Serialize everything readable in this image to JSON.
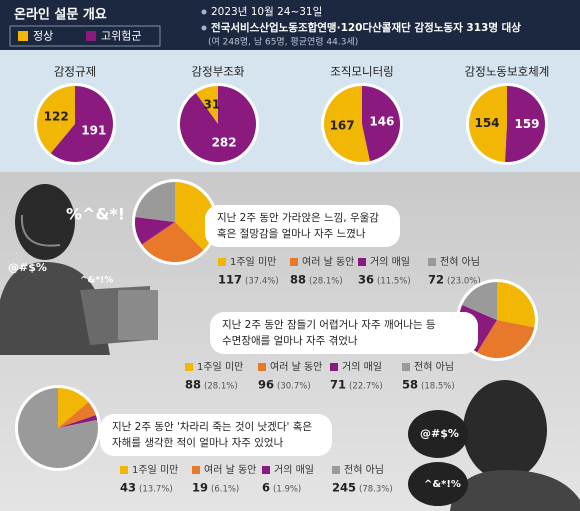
{
  "header": {
    "title": "온라인 설문 개요",
    "legend": [
      {
        "label": "정상",
        "color": "#f2b705"
      },
      {
        "label": "고위험군",
        "color": "#8b1a7e"
      }
    ],
    "info": [
      "2023년 10월 24~31일",
      "전국서비스산업노동조합연맹·120다산콜재단 감정노동자 313명 대상",
      "(여 248명, 남 65명, 평균연령 44.3세)"
    ]
  },
  "illustration": {
    "texts": [
      "%^&*!",
      "@#$%",
      "^&*!%",
      "@#$%",
      "^&*!%"
    ]
  },
  "chart_data": [
    {
      "type": "pie",
      "title": "감정규제",
      "values": [
        122,
        191
      ],
      "colors": [
        "#f2b705",
        "#8b1a7e"
      ]
    },
    {
      "type": "pie",
      "title": "감정부조화",
      "values": [
        31,
        282
      ],
      "colors": [
        "#f2b705",
        "#8b1a7e"
      ]
    },
    {
      "type": "pie",
      "title": "조직모니터링",
      "values": [
        167,
        146
      ],
      "colors": [
        "#f2b705",
        "#8b1a7e"
      ]
    },
    {
      "type": "pie",
      "title": "감정노동보호체계",
      "values": [
        154,
        159
      ],
      "colors": [
        "#f2b705",
        "#8b1a7e"
      ]
    },
    {
      "type": "pie",
      "title": [
        "지난 2주 동안 가라앉은 느낌, 우울감",
        "혹은 절망감을 얼마나 자주 느꼈나"
      ],
      "categories": [
        "1주일 미만",
        "여러 날 동안",
        "거의 매일",
        "전혀 아님"
      ],
      "values": [
        117,
        88,
        36,
        72
      ],
      "percent_labels": [
        "(37.4%)",
        "(28.1%)",
        "(11.5%)",
        "(23.0%)"
      ],
      "colors": [
        "#f2b705",
        "#e8782a",
        "#8b1a7e",
        "#9a9a9a"
      ]
    },
    {
      "type": "pie",
      "title": [
        "지난 2주 동안 잠들기 어렵거나 자주 깨어나는 등",
        "수면장애를 얼마나 자주 겪었나"
      ],
      "categories": [
        "1주일 미만",
        "여러 날 동안",
        "거의 매일",
        "전혀 아님"
      ],
      "values": [
        88,
        96,
        71,
        58
      ],
      "percent_labels": [
        "(28.1%)",
        "(30.7%)",
        "(22.7%)",
        "(18.5%)"
      ],
      "colors": [
        "#f2b705",
        "#e8782a",
        "#8b1a7e",
        "#9a9a9a"
      ]
    },
    {
      "type": "pie",
      "title": [
        "지난 2주 동안 '차라리 죽는 것이 낫겠다' 혹은",
        "자해를 생각한 적이 얼마나 자주 있었나"
      ],
      "categories": [
        "1주일 미만",
        "여러 날 동안",
        "거의 매일",
        "전혀 아님"
      ],
      "values": [
        43,
        19,
        6,
        245
      ],
      "percent_labels": [
        "(13.7%)",
        "(6.1%)",
        "(1.9%)",
        "(78.3%)"
      ],
      "colors": [
        "#f2b705",
        "#e8782a",
        "#8b1a7e",
        "#9a9a9a"
      ]
    }
  ]
}
